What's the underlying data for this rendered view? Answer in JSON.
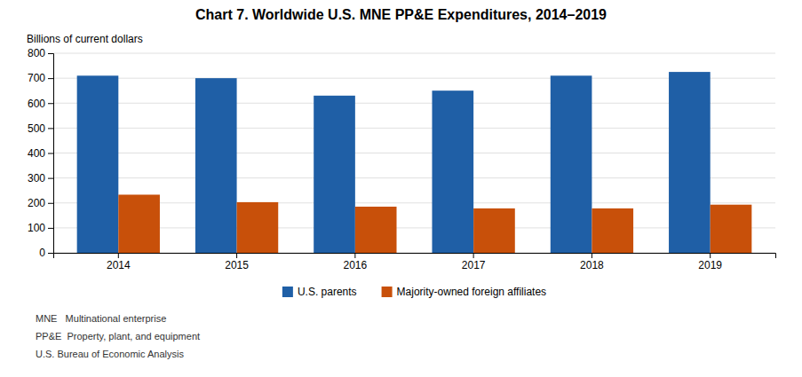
{
  "chart_data": {
    "type": "bar",
    "title": "Chart 7. Worldwide U.S. MNE PP&E Expenditures, 2014–2019",
    "ylabel": "Billions of current dollars",
    "categories": [
      "2014",
      "2015",
      "2016",
      "2017",
      "2018",
      "2019"
    ],
    "series": [
      {
        "name": "U.S. parents",
        "color": "#1F5FA6",
        "values": [
          710,
          700,
          630,
          650,
          710,
          725
        ]
      },
      {
        "name": "Majority-owned foreign affiliates",
        "color": "#C8500A",
        "values": [
          233,
          203,
          185,
          178,
          178,
          193
        ]
      }
    ],
    "ylim": [
      0,
      800
    ],
    "yticks": [
      0,
      100,
      200,
      300,
      400,
      500,
      600,
      700,
      800
    ],
    "grid": true,
    "legend": "bottom",
    "annotations": [
      "MNE   Multinational enterprise",
      "PP&E  Property, plant, and equipment",
      "U.S. Bureau of Economic Analysis"
    ]
  }
}
